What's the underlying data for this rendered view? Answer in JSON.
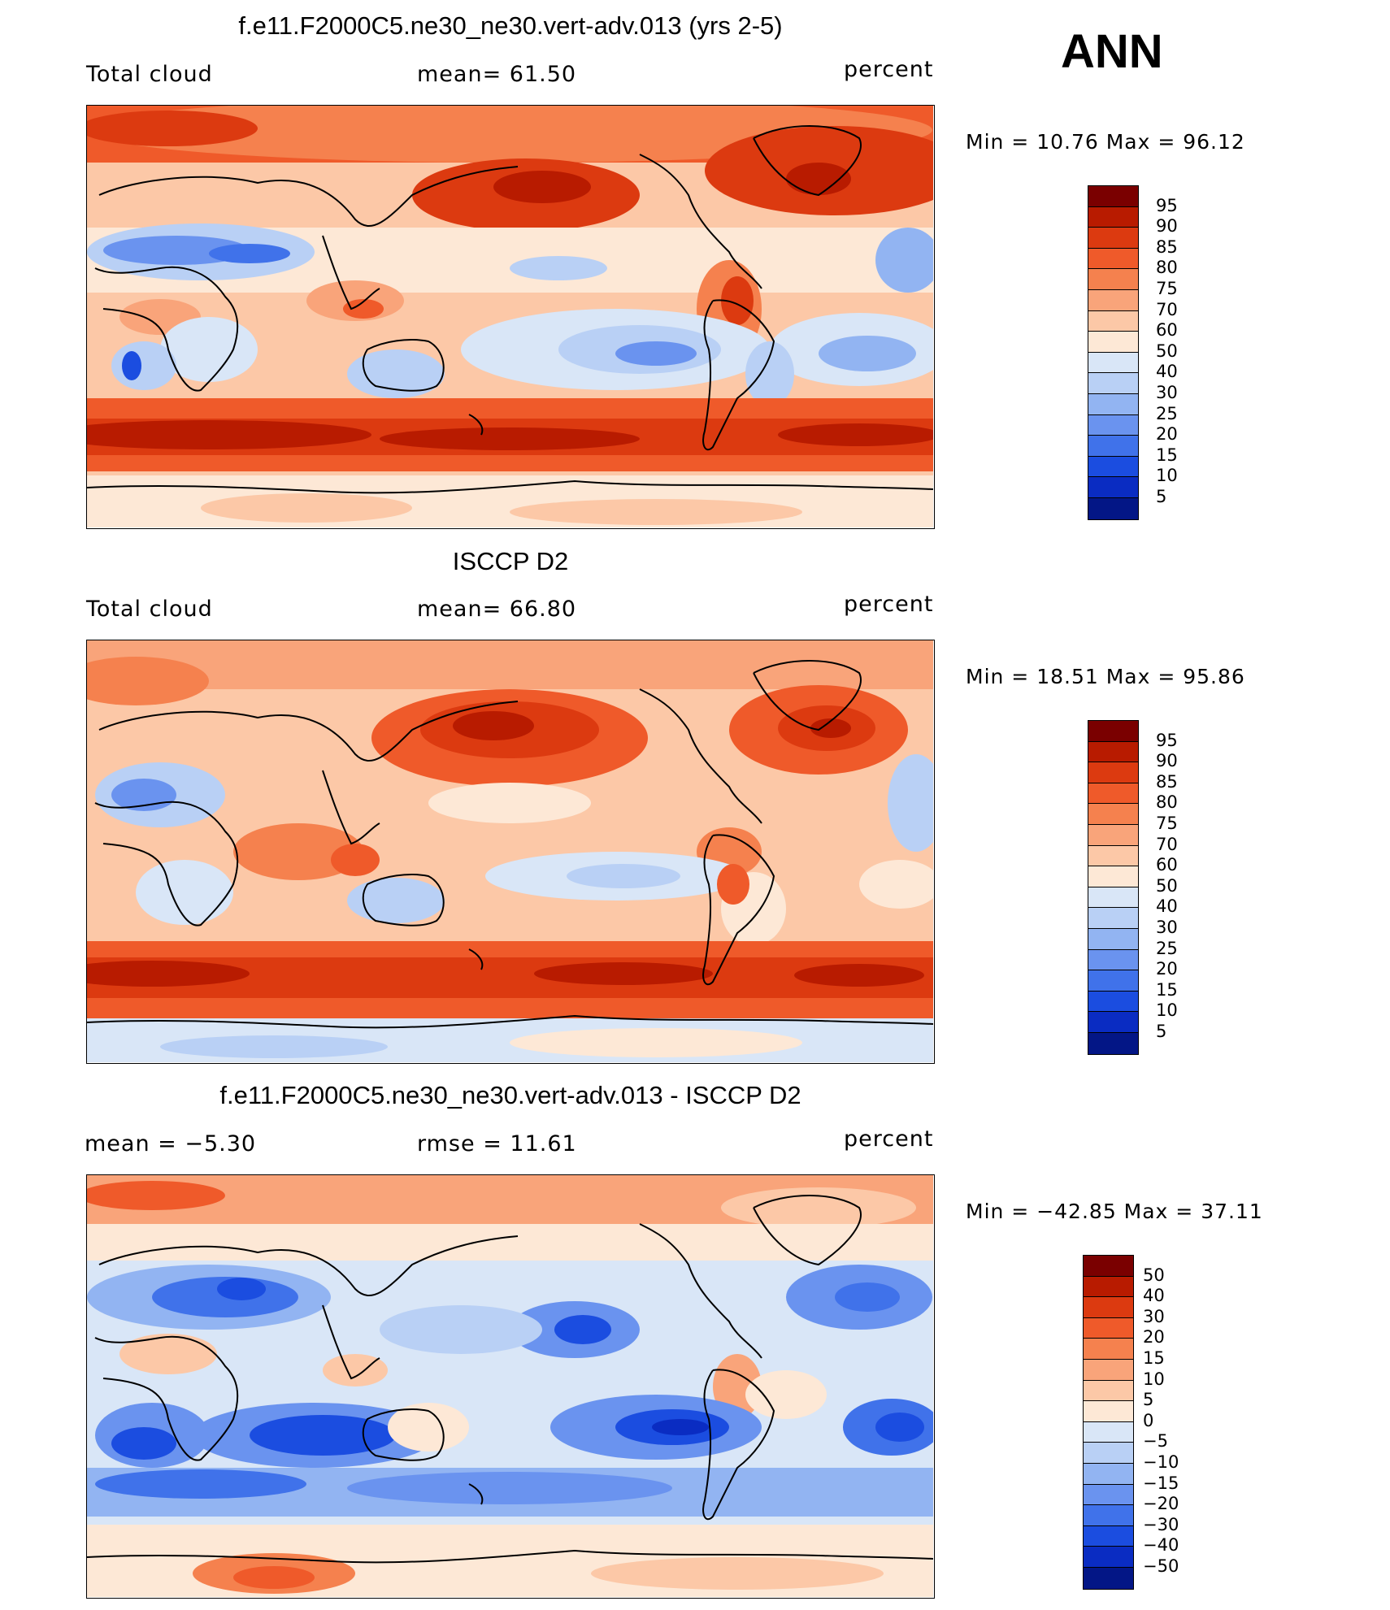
{
  "season": "ANN",
  "panels": [
    {
      "title": "f.e11.F2000C5.ne30_ne30.vert-adv.013 (yrs 2-5)",
      "left_label": "Total cloud",
      "center_label": "mean=   61.50",
      "right_label": "percent",
      "minmax": "Min =   10.76 Max =   96.12",
      "colorbar": {
        "labels": [
          "95",
          "90",
          "85",
          "80",
          "75",
          "70",
          "60",
          "50",
          "40",
          "30",
          "25",
          "20",
          "15",
          "10",
          "5"
        ],
        "colors": [
          "#7a0000",
          "#b81b00",
          "#dc3a10",
          "#ef5a2a",
          "#f5814e",
          "#f9a47a",
          "#fcc8a7",
          "#fde8d6",
          "#d9e6f7",
          "#b9d0f5",
          "#92b4f2",
          "#6a93ef",
          "#4072ea",
          "#1b4de0",
          "#0a2cc2",
          "#031686"
        ]
      }
    },
    {
      "title": "ISCCP D2",
      "left_label": "Total cloud",
      "center_label": "mean=   66.80",
      "right_label": "percent",
      "minmax": "Min =   18.51 Max =   95.86",
      "colorbar": {
        "labels": [
          "95",
          "90",
          "85",
          "80",
          "75",
          "70",
          "60",
          "50",
          "40",
          "30",
          "25",
          "20",
          "15",
          "10",
          "5"
        ],
        "colors": [
          "#7a0000",
          "#b81b00",
          "#dc3a10",
          "#ef5a2a",
          "#f5814e",
          "#f9a47a",
          "#fcc8a7",
          "#fde8d6",
          "#d9e6f7",
          "#b9d0f5",
          "#92b4f2",
          "#6a93ef",
          "#4072ea",
          "#1b4de0",
          "#0a2cc2",
          "#031686"
        ]
      }
    },
    {
      "title": "f.e11.F2000C5.ne30_ne30.vert-adv.013 - ISCCP D2",
      "left_label": "mean =   −5.30",
      "center_label": "rmse =   11.61",
      "right_label": "percent",
      "minmax": "Min = −42.85 Max =   37.11",
      "colorbar": {
        "labels": [
          "50",
          "40",
          "30",
          "20",
          "15",
          "10",
          "5",
          "0",
          "−5",
          "−10",
          "−15",
          "−20",
          "−30",
          "−40",
          "−50"
        ],
        "colors": [
          "#7a0000",
          "#b81b00",
          "#dc3a10",
          "#ef5a2a",
          "#f5814e",
          "#f9a47a",
          "#fcc8a7",
          "#fde8d6",
          "#d9e6f7",
          "#b9d0f5",
          "#92b4f2",
          "#6a93ef",
          "#4072ea",
          "#1b4de0",
          "#0a2cc2",
          "#031686"
        ]
      }
    }
  ]
}
